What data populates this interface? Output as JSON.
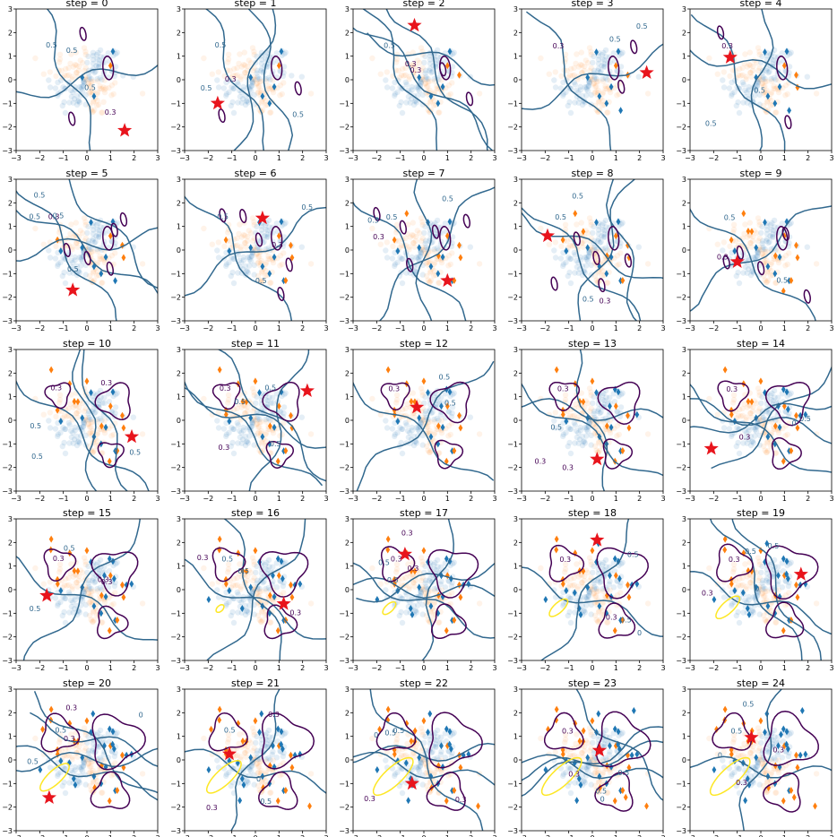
{
  "figure": {
    "panel_titles": [
      "step = 0",
      "step = 1",
      "step = 2",
      "step = 3",
      "step = 4",
      "step = 5",
      "step = 6",
      "step = 7",
      "step = 8",
      "step = 9",
      "step = 10",
      "step = 11",
      "step = 12",
      "step = 13",
      "step = 14",
      "step = 15",
      "step = 16",
      "step = 17",
      "step = 18",
      "step = 19",
      "step = 20",
      "step = 21",
      "step = 22",
      "step = 23",
      "step = 24"
    ]
  },
  "colors": {
    "class_a": "#1f77b4",
    "class_b": "#ff7f0e",
    "contour_low": "#440154",
    "contour_mid": "#31688e",
    "contour_yellow": "#fde725",
    "query": "#e8141c"
  },
  "chart_data": [
    {
      "type": "scatter",
      "title": "step = 0",
      "xlim": [
        -3,
        3
      ],
      "ylim": [
        -3,
        3
      ],
      "xticks": [
        -3,
        -2,
        -1,
        0,
        1,
        2,
        3
      ],
      "yticks": [
        -3,
        -2,
        -1,
        0,
        1,
        2,
        3
      ],
      "grid": false,
      "query_point": [
        1.6,
        -2.15
      ],
      "contour_labels": [
        "0.5",
        "0.5",
        "0.3",
        "0.5"
      ]
    },
    {
      "type": "scatter",
      "title": "step = 1",
      "xlim": [
        -3,
        3
      ],
      "ylim": [
        -3,
        3
      ],
      "xticks": [
        -3,
        -2,
        -1,
        0,
        1,
        2,
        3
      ],
      "yticks": [
        -3,
        -2,
        -1,
        0,
        1,
        2,
        3
      ],
      "grid": false,
      "query_point": [
        -1.6,
        -1.0
      ],
      "contour_labels": [
        "0.5",
        "0.5",
        "0.5",
        "0.3"
      ]
    },
    {
      "type": "scatter",
      "title": "step = 2",
      "xlim": [
        -3,
        3
      ],
      "ylim": [
        -3,
        3
      ],
      "xticks": [
        -3,
        -2,
        -1,
        0,
        1,
        2,
        3
      ],
      "yticks": [
        -3,
        -2,
        -1,
        0,
        1,
        2,
        3
      ],
      "grid": false,
      "query_point": [
        -0.4,
        2.3
      ],
      "contour_labels": [
        "0.5",
        "0.3",
        "0.3"
      ]
    },
    {
      "type": "scatter",
      "title": "step = 3",
      "xlim": [
        -3,
        3
      ],
      "ylim": [
        -3,
        3
      ],
      "xticks": [
        -3,
        -2,
        -1,
        0,
        1,
        2,
        3
      ],
      "yticks": [
        -3,
        -2,
        -1,
        0,
        1,
        2,
        3
      ],
      "grid": false,
      "query_point": [
        2.3,
        0.3
      ],
      "contour_labels": [
        "0.3",
        "0.5",
        "0.5"
      ]
    },
    {
      "type": "scatter",
      "title": "step = 4",
      "xlim": [
        -3,
        3
      ],
      "ylim": [
        -3,
        3
      ],
      "xticks": [
        -3,
        -2,
        -1,
        0,
        1,
        2,
        3
      ],
      "yticks": [
        -3,
        -2,
        -1,
        0,
        1,
        2,
        3
      ],
      "grid": false,
      "query_point": [
        -1.3,
        0.95
      ],
      "contour_labels": [
        "0.3",
        "0.5",
        "0.5"
      ]
    },
    {
      "type": "scatter",
      "title": "step = 5",
      "xlim": [
        -3,
        3
      ],
      "ylim": [
        -3,
        3
      ],
      "xticks": [
        -3,
        -2,
        -1,
        0,
        1,
        2,
        3
      ],
      "yticks": [
        -3,
        -2,
        -1,
        0,
        1,
        2,
        3
      ],
      "grid": false,
      "query_point": [
        -0.6,
        -1.7
      ],
      "contour_labels": [
        "0.3",
        "0.5",
        "0.5",
        "0.5",
        "0.5"
      ]
    },
    {
      "type": "scatter",
      "title": "step = 6",
      "xlim": [
        -3,
        3
      ],
      "ylim": [
        -3,
        3
      ],
      "xticks": [
        -3,
        -2,
        -1,
        0,
        1,
        2,
        3
      ],
      "yticks": [
        -3,
        -2,
        -1,
        0,
        1,
        2,
        3
      ],
      "grid": false,
      "query_point": [
        0.3,
        1.35
      ],
      "contour_labels": [
        "0.5",
        "0.5",
        "0.3",
        "0.5"
      ]
    },
    {
      "type": "scatter",
      "title": "step = 7",
      "xlim": [
        -3,
        3
      ],
      "ylim": [
        -3,
        3
      ],
      "xticks": [
        -3,
        -2,
        -1,
        0,
        1,
        2,
        3
      ],
      "yticks": [
        -3,
        -2,
        -1,
        0,
        1,
        2,
        3
      ],
      "grid": false,
      "query_point": [
        1.0,
        -1.3
      ],
      "contour_labels": [
        "0.5",
        "0.3",
        "0.5",
        "0.5"
      ]
    },
    {
      "type": "scatter",
      "title": "step = 8",
      "xlim": [
        -3,
        3
      ],
      "ylim": [
        -3,
        3
      ],
      "xticks": [
        -3,
        -2,
        -1,
        0,
        1,
        2,
        3
      ],
      "yticks": [
        -3,
        -2,
        -1,
        0,
        1,
        2,
        3
      ],
      "grid": false,
      "query_point": [
        -1.9,
        0.6
      ],
      "contour_labels": [
        "0.5",
        "0.3",
        "0.5",
        "0.5"
      ]
    },
    {
      "type": "scatter",
      "title": "step = 9",
      "xlim": [
        -3,
        3
      ],
      "ylim": [
        -3,
        3
      ],
      "xticks": [
        -3,
        -2,
        -1,
        0,
        1,
        2,
        3
      ],
      "yticks": [
        -3,
        -2,
        -1,
        0,
        1,
        2,
        3
      ],
      "grid": false,
      "query_point": [
        -1.0,
        -0.5
      ],
      "contour_labels": [
        "0.5",
        "0.3",
        "0.5"
      ]
    },
    {
      "type": "scatter",
      "title": "step = 10",
      "xlim": [
        -3,
        3
      ],
      "ylim": [
        -3,
        3
      ],
      "xticks": [
        -3,
        -2,
        -1,
        0,
        1,
        2,
        3
      ],
      "yticks": [
        -3,
        -2,
        -1,
        0,
        1,
        2,
        3
      ],
      "grid": false,
      "query_point": [
        1.9,
        -0.7
      ],
      "contour_labels": [
        "0.3",
        "0.3",
        "0.5",
        "0.5",
        "0.5"
      ]
    },
    {
      "type": "scatter",
      "title": "step = 11",
      "xlim": [
        -3,
        3
      ],
      "ylim": [
        -3,
        3
      ],
      "xticks": [
        -3,
        -2,
        -1,
        0,
        1,
        2,
        3
      ],
      "yticks": [
        -3,
        -2,
        -1,
        0,
        1,
        2,
        3
      ],
      "grid": false,
      "query_point": [
        2.2,
        1.25
      ],
      "contour_labels": [
        "0.3",
        "0.3",
        "0.5",
        "0.5",
        "0.5"
      ]
    },
    {
      "type": "scatter",
      "title": "step = 12",
      "xlim": [
        -3,
        3
      ],
      "ylim": [
        -3,
        3
      ],
      "xticks": [
        -3,
        -2,
        -1,
        0,
        1,
        2,
        3
      ],
      "yticks": [
        -3,
        -2,
        -1,
        0,
        1,
        2,
        3
      ],
      "grid": false,
      "query_point": [
        -0.3,
        0.55
      ],
      "contour_labels": [
        "0.3",
        "0.5",
        "0.5"
      ]
    },
    {
      "type": "scatter",
      "title": "step = 13",
      "xlim": [
        -3,
        3
      ],
      "ylim": [
        -3,
        3
      ],
      "xticks": [
        -3,
        -2,
        -1,
        0,
        1,
        2,
        3
      ],
      "yticks": [
        -3,
        -2,
        -1,
        0,
        1,
        2,
        3
      ],
      "grid": false,
      "query_point": [
        0.2,
        -1.65
      ],
      "contour_labels": [
        "0.3",
        "0.3",
        "0.3",
        "0.5"
      ]
    },
    {
      "type": "scatter",
      "title": "step = 14",
      "xlim": [
        -3,
        3
      ],
      "ylim": [
        -3,
        3
      ],
      "xticks": [
        -3,
        -2,
        -1,
        0,
        1,
        2,
        3
      ],
      "yticks": [
        -3,
        -2,
        -1,
        0,
        1,
        2,
        3
      ],
      "grid": false,
      "query_point": [
        -2.1,
        -1.2
      ],
      "contour_labels": [
        "0.3",
        "0",
        "0.3",
        "0.5"
      ]
    },
    {
      "type": "scatter",
      "title": "step = 15",
      "xlim": [
        -3,
        3
      ],
      "ylim": [
        -3,
        3
      ],
      "xticks": [
        -3,
        -2,
        -1,
        0,
        1,
        2,
        3
      ],
      "yticks": [
        -3,
        -2,
        -1,
        0,
        1,
        2,
        3
      ],
      "grid": false,
      "query_point": [
        -1.7,
        -0.25
      ],
      "contour_labels": [
        "0.3",
        "0.5",
        "0.3",
        "0.3",
        "0.5"
      ]
    },
    {
      "type": "scatter",
      "title": "step = 16",
      "xlim": [
        -3,
        3
      ],
      "ylim": [
        -3,
        3
      ],
      "xticks": [
        -3,
        -2,
        -1,
        0,
        1,
        2,
        3
      ],
      "yticks": [
        -3,
        -2,
        -1,
        0,
        1,
        2,
        3
      ],
      "grid": false,
      "query_point": [
        1.2,
        -0.6
      ],
      "contour_labels": [
        "0.5",
        "0.3",
        "0.3",
        "0.5"
      ]
    },
    {
      "type": "scatter",
      "title": "step = 17",
      "xlim": [
        -3,
        3
      ],
      "ylim": [
        -3,
        3
      ],
      "xticks": [
        -3,
        -2,
        -1,
        0,
        1,
        2,
        3
      ],
      "yticks": [
        -3,
        -2,
        -1,
        0,
        1,
        2,
        3
      ],
      "grid": false,
      "query_point": [
        -0.8,
        1.5
      ],
      "contour_labels": [
        "0.3",
        "0.3",
        "0.3",
        "0.5",
        "0.5"
      ]
    },
    {
      "type": "scatter",
      "title": "step = 18",
      "xlim": [
        -3,
        3
      ],
      "ylim": [
        -3,
        3
      ],
      "xticks": [
        -3,
        -2,
        -1,
        0,
        1,
        2,
        3
      ],
      "yticks": [
        -3,
        -2,
        -1,
        0,
        1,
        2,
        3
      ],
      "grid": false,
      "query_point": [
        0.2,
        2.1
      ],
      "contour_labels": [
        "0.3",
        "0",
        "0.3",
        "0.5",
        "0.5"
      ]
    },
    {
      "type": "scatter",
      "title": "step = 19",
      "xlim": [
        -3,
        3
      ],
      "ylim": [
        -3,
        3
      ],
      "xticks": [
        -3,
        -2,
        -1,
        0,
        1,
        2,
        3
      ],
      "yticks": [
        -3,
        -2,
        -1,
        0,
        1,
        2,
        3
      ],
      "grid": false,
      "query_point": [
        1.7,
        0.65
      ],
      "contour_labels": [
        "0.3",
        "0",
        "0.3",
        "0.5",
        "0.5"
      ]
    },
    {
      "type": "scatter",
      "title": "step = 20",
      "xlim": [
        -3,
        3
      ],
      "ylim": [
        -3,
        3
      ],
      "xticks": [
        -3,
        -2,
        -1,
        0,
        1,
        2,
        3
      ],
      "yticks": [
        -3,
        -2,
        -1,
        0,
        1,
        2,
        3
      ],
      "grid": false,
      "query_point": [
        -1.6,
        -1.6
      ],
      "contour_labels": [
        "0.5",
        "0",
        "0.3",
        "0.3",
        "0.5"
      ]
    },
    {
      "type": "scatter",
      "title": "step = 21",
      "xlim": [
        -3,
        3
      ],
      "ylim": [
        -3,
        3
      ],
      "xticks": [
        -3,
        -2,
        -1,
        0,
        1,
        2,
        3
      ],
      "yticks": [
        -3,
        -2,
        -1,
        0,
        1,
        2,
        3
      ],
      "grid": false,
      "query_point": [
        -1.1,
        0.25
      ],
      "contour_labels": [
        "0.5",
        "0",
        "0.3",
        "0.3",
        "0.5"
      ]
    },
    {
      "type": "scatter",
      "title": "step = 22",
      "xlim": [
        -3,
        3
      ],
      "ylim": [
        -3,
        3
      ],
      "xticks": [
        -3,
        -2,
        -1,
        0,
        1,
        2,
        3
      ],
      "yticks": [
        -3,
        -2,
        -1,
        0,
        1,
        2,
        3
      ],
      "grid": false,
      "query_point": [
        -0.5,
        -1.0
      ],
      "contour_labels": [
        "0.5",
        "0",
        "0.3",
        "0.3",
        "0.5"
      ]
    },
    {
      "type": "scatter",
      "title": "step = 23",
      "xlim": [
        -3,
        3
      ],
      "ylim": [
        -3,
        3
      ],
      "xticks": [
        -3,
        -2,
        -1,
        0,
        1,
        2,
        3
      ],
      "yticks": [
        -3,
        -2,
        -1,
        0,
        1,
        2,
        3
      ],
      "grid": false,
      "query_point": [
        0.3,
        0.4
      ],
      "contour_labels": [
        "0.3",
        "0",
        "0.3",
        "0.5",
        "0.5"
      ]
    },
    {
      "type": "scatter",
      "title": "step = 24",
      "xlim": [
        -3,
        3
      ],
      "ylim": [
        -3,
        3
      ],
      "xticks": [
        -3,
        -2,
        -1,
        0,
        1,
        2,
        3
      ],
      "yticks": [
        -3,
        -2,
        -1,
        0,
        1,
        2,
        3
      ],
      "grid": false,
      "query_point": [
        -0.4,
        0.95
      ],
      "contour_labels": [
        "0.5",
        "0",
        "0.3",
        "0.3",
        "0.5"
      ]
    }
  ]
}
